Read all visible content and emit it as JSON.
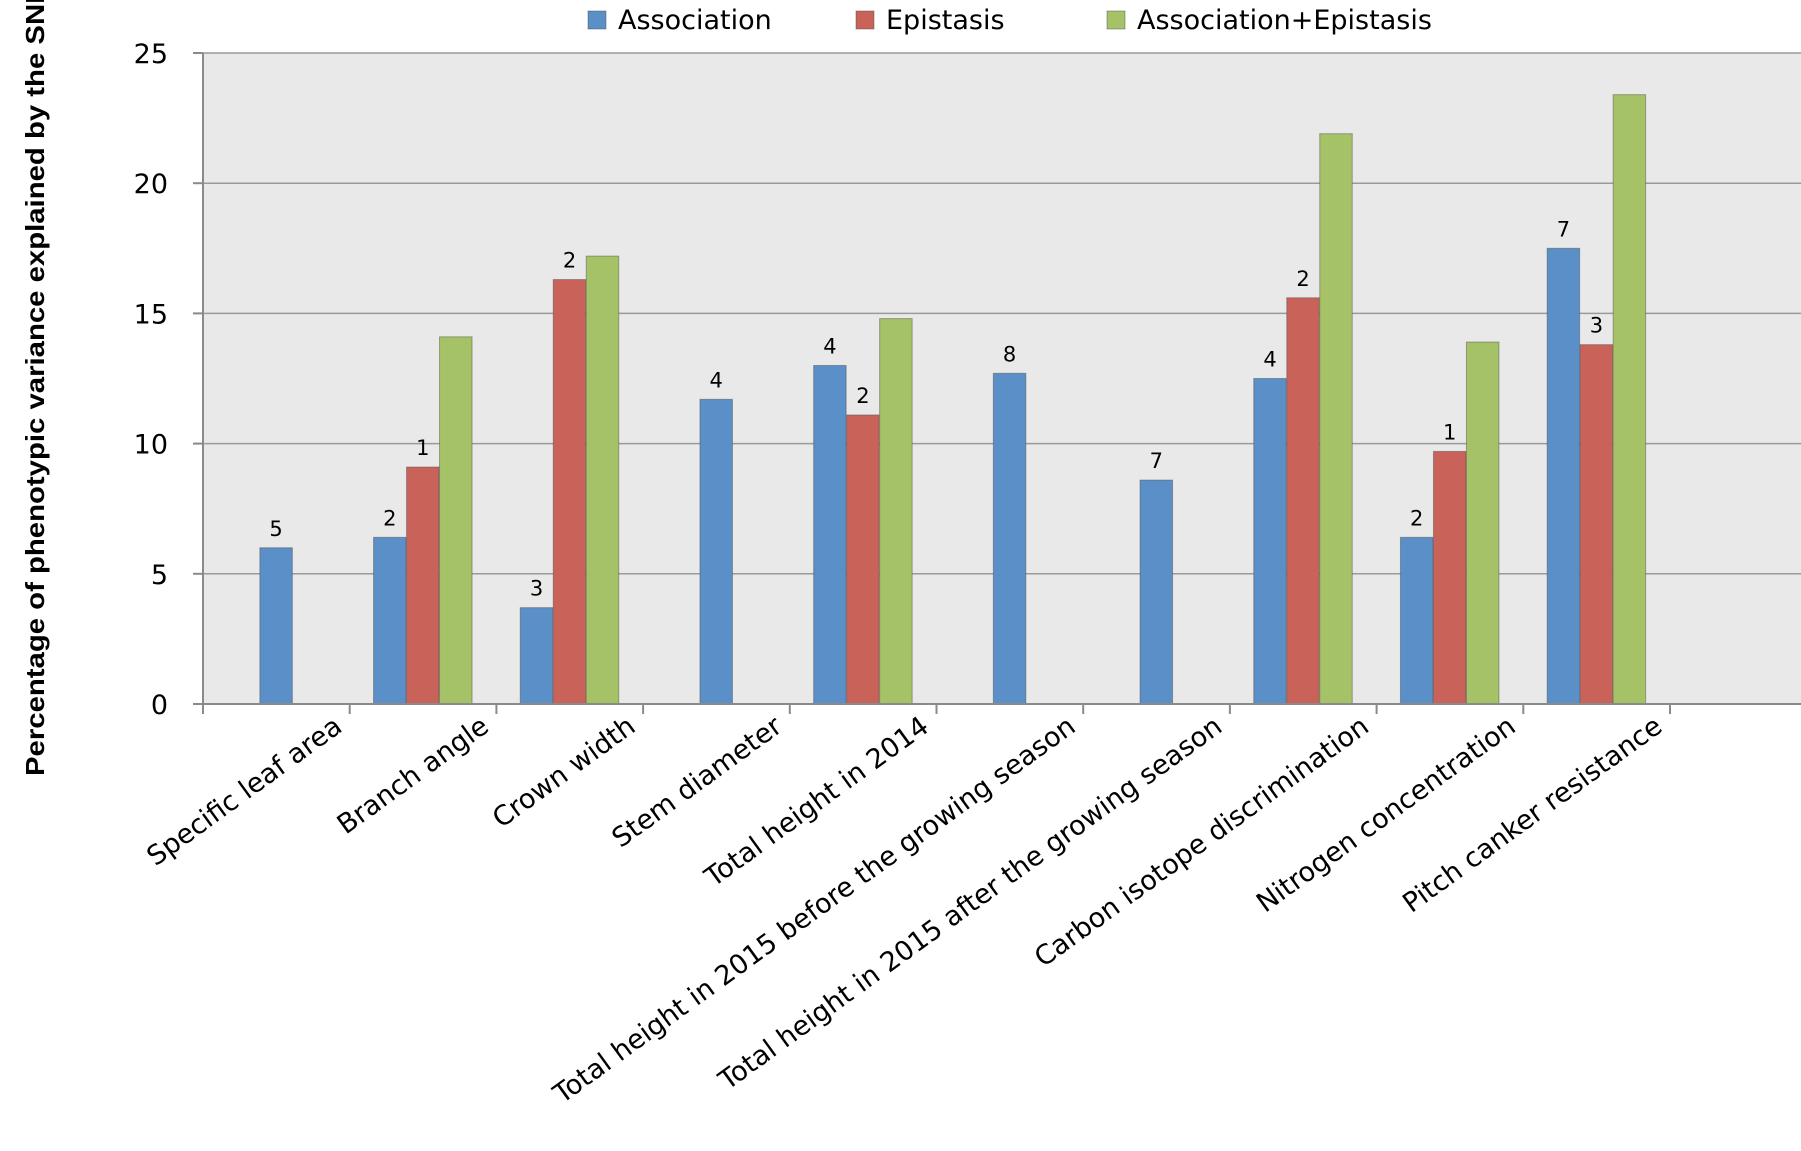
{
  "chart_data": {
    "type": "bar",
    "ylabel": "Percentage of phenotypic variance explained by the SNPs",
    "ylim": [
      0,
      25
    ],
    "yticks": [
      "0",
      "5",
      "10",
      "15",
      "20",
      "25"
    ],
    "grid": true,
    "legend_position": "top",
    "categories": [
      "Specific leaf area",
      "Branch angle",
      "Crown width",
      "Stem diameter",
      "Total height in 2014",
      "Total height in 2015 before the growing season",
      "Total height in 2015 after the growing season",
      "Carbon isotope discrimination",
      "Nitrogen concentration",
      "Pitch canker resistance"
    ],
    "series": [
      {
        "name": "Association",
        "color": "#5b8fc8",
        "values": [
          6.0,
          6.4,
          3.7,
          11.7,
          13.0,
          12.7,
          8.6,
          12.5,
          6.4,
          17.5
        ],
        "labels": [
          "5",
          "2",
          "3",
          "4",
          "4",
          "8",
          "7",
          "4",
          "2",
          "7"
        ]
      },
      {
        "name": "Epistasis",
        "color": "#c9635a",
        "values": [
          null,
          9.1,
          16.3,
          null,
          11.1,
          null,
          null,
          15.6,
          9.7,
          13.8
        ],
        "labels": [
          null,
          "1",
          "2",
          null,
          "2",
          null,
          null,
          "2",
          "1",
          "3"
        ]
      },
      {
        "name": "Association+Epistasis",
        "color": "#a6c266",
        "values": [
          null,
          14.1,
          17.2,
          null,
          14.8,
          null,
          null,
          21.9,
          13.9,
          23.4
        ],
        "labels": [
          null,
          null,
          null,
          null,
          null,
          null,
          null,
          null,
          null,
          null
        ]
      }
    ]
  }
}
